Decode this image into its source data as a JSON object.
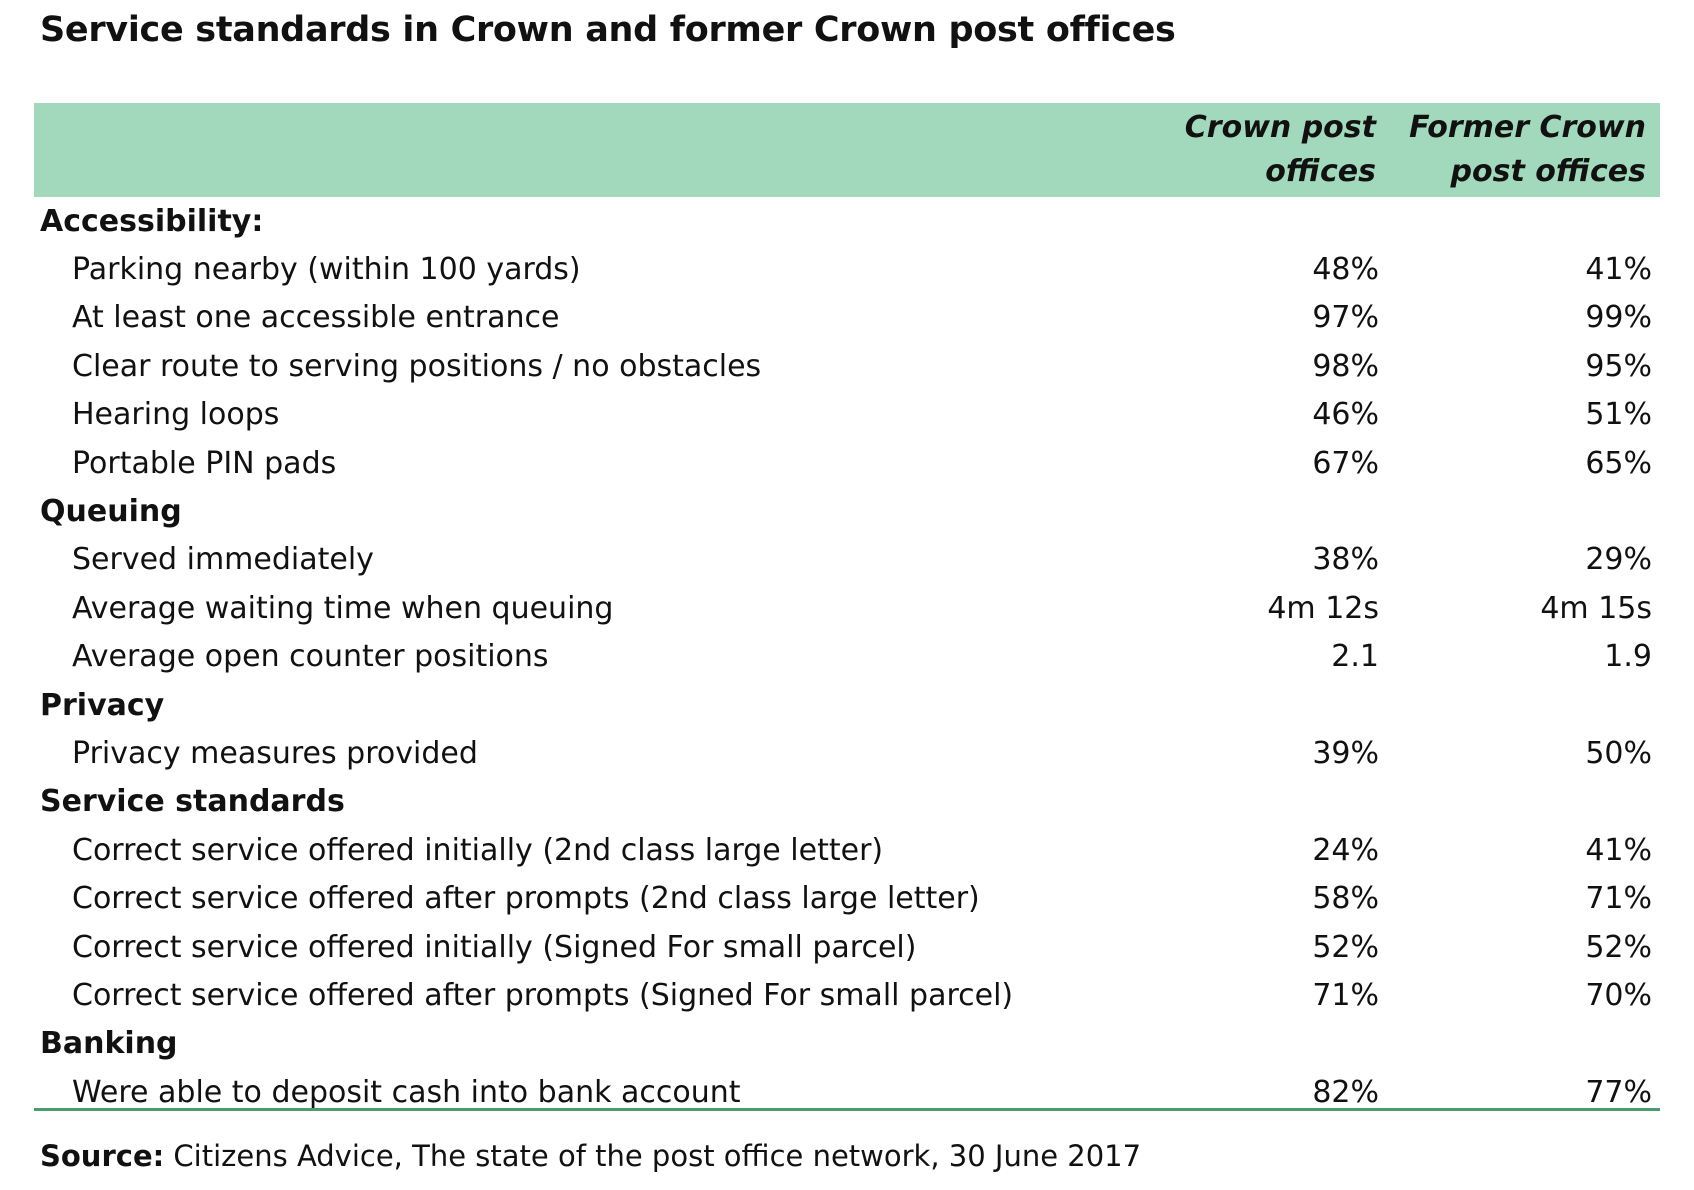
{
  "title": "Service standards in Crown and former Crown post offices",
  "table": {
    "columns": [
      "Crown post\noffices",
      "Former Crown\npost offices"
    ],
    "rows": [
      {
        "type": "section",
        "label": "Accessibility:"
      },
      {
        "type": "item",
        "label": "Parking nearby (within 100 yards)",
        "crown": "48%",
        "former": "41%"
      },
      {
        "type": "item",
        "label": "At least one accessible entrance",
        "crown": "97%",
        "former": "99%"
      },
      {
        "type": "item",
        "label": "Clear route to serving positions / no obstacles",
        "crown": "98%",
        "former": "95%"
      },
      {
        "type": "item",
        "label": "Hearing loops",
        "crown": "46%",
        "former": "51%"
      },
      {
        "type": "item",
        "label": "Portable PIN pads",
        "crown": "67%",
        "former": "65%"
      },
      {
        "type": "section",
        "label": "Queuing"
      },
      {
        "type": "item",
        "label": "Served immediately",
        "crown": "38%",
        "former": "29%"
      },
      {
        "type": "item",
        "label": "Average waiting time when queuing",
        "crown": "4m 12s",
        "former": "4m 15s"
      },
      {
        "type": "item",
        "label": "Average open counter positions",
        "crown": "2.1",
        "former": "1.9"
      },
      {
        "type": "section",
        "label": "Privacy"
      },
      {
        "type": "item",
        "label": "Privacy measures provided",
        "crown": "39%",
        "former": "50%"
      },
      {
        "type": "section",
        "label": "Service standards"
      },
      {
        "type": "item",
        "label": "Correct service offered initially (2nd class large letter)",
        "crown": "24%",
        "former": "41%"
      },
      {
        "type": "item",
        "label": "Correct service offered after prompts (2nd class large letter)",
        "crown": "58%",
        "former": "71%"
      },
      {
        "type": "item",
        "label": "Correct service offered initially (Signed For small parcel)",
        "crown": "52%",
        "former": "52%"
      },
      {
        "type": "item",
        "label": "Correct service offered after prompts (Signed For small parcel)",
        "crown": "71%",
        "former": "70%"
      },
      {
        "type": "section",
        "label": "Banking"
      },
      {
        "type": "item",
        "label": "Were able to deposit cash into bank account",
        "crown": "82%",
        "former": "77%"
      }
    ]
  },
  "source": {
    "label": "Source:",
    "text": " Citizens Advice, The state of the post office network, 30 June 2017"
  },
  "colors": {
    "header_bg": "#a2d8bb",
    "rule": "#4a9a73"
  }
}
